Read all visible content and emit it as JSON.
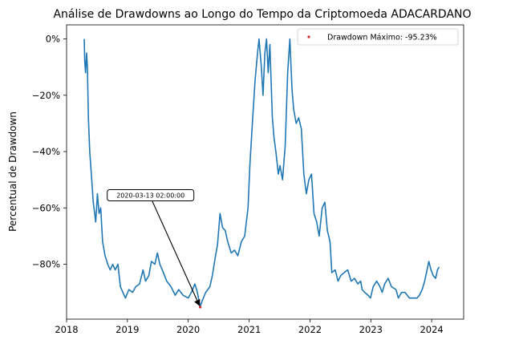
{
  "chart_data": {
    "type": "line",
    "title": "Análise de Drawdowns ao Longo do Tempo da Criptomoeda ADACARDANO",
    "xlabel": "",
    "ylabel": "Percentual de Drawdown",
    "xlim": [
      "2018-01-01",
      "2024-07-11"
    ],
    "ylim": [
      -99.5,
      5
    ],
    "x_ticks": [
      "2018",
      "2019",
      "2020",
      "2021",
      "2022",
      "2023",
      "2024"
    ],
    "y_ticks": [
      "0%",
      "−20%",
      "−40%",
      "−60%",
      "−80%"
    ],
    "y_tick_values": [
      0,
      -20,
      -40,
      -60,
      -80
    ],
    "grid": false,
    "legend_position": "top-right",
    "series": [
      {
        "color": "#1f77b4",
        "points": [
          [
            "2018-04-17",
            0
          ],
          [
            "2018-04-20",
            -8
          ],
          [
            "2018-04-25",
            -12
          ],
          [
            "2018-05-01",
            -5
          ],
          [
            "2018-05-06",
            -10
          ],
          [
            "2018-05-12",
            -28
          ],
          [
            "2018-05-20",
            -40
          ],
          [
            "2018-06-01",
            -50
          ],
          [
            "2018-06-10",
            -58
          ],
          [
            "2018-06-25",
            -65
          ],
          [
            "2018-07-05",
            -55
          ],
          [
            "2018-07-15",
            -62
          ],
          [
            "2018-07-25",
            -60
          ],
          [
            "2018-08-05",
            -72
          ],
          [
            "2018-08-20",
            -77
          ],
          [
            "2018-09-05",
            -80
          ],
          [
            "2018-09-20",
            -82
          ],
          [
            "2018-10-05",
            -80
          ],
          [
            "2018-10-20",
            -82
          ],
          [
            "2018-11-05",
            -80
          ],
          [
            "2018-11-20",
            -88
          ],
          [
            "2018-12-05",
            -90
          ],
          [
            "2018-12-20",
            -92
          ],
          [
            "2019-01-10",
            -89
          ],
          [
            "2019-02-01",
            -90
          ],
          [
            "2019-02-20",
            -88
          ],
          [
            "2019-03-15",
            -87
          ],
          [
            "2019-04-05",
            -82
          ],
          [
            "2019-04-20",
            -86
          ],
          [
            "2019-05-10",
            -84
          ],
          [
            "2019-05-25",
            -79
          ],
          [
            "2019-06-15",
            -80
          ],
          [
            "2019-06-30",
            -76
          ],
          [
            "2019-07-15",
            -80
          ],
          [
            "2019-08-05",
            -83
          ],
          [
            "2019-08-25",
            -86
          ],
          [
            "2019-09-20",
            -88
          ],
          [
            "2019-10-15",
            -91
          ],
          [
            "2019-11-05",
            -89
          ],
          [
            "2019-12-01",
            -91
          ],
          [
            "2020-01-01",
            -92
          ],
          [
            "2020-01-20",
            -90
          ],
          [
            "2020-02-10",
            -87
          ],
          [
            "2020-02-25",
            -90
          ],
          [
            "2020-03-13",
            -95
          ],
          [
            "2020-03-25",
            -93
          ],
          [
            "2020-04-15",
            -90
          ],
          [
            "2020-05-10",
            -88
          ],
          [
            "2020-05-25",
            -84
          ],
          [
            "2020-06-10",
            -78
          ],
          [
            "2020-06-25",
            -73
          ],
          [
            "2020-07-10",
            -62
          ],
          [
            "2020-07-25",
            -67
          ],
          [
            "2020-08-10",
            -68
          ],
          [
            "2020-08-25",
            -72
          ],
          [
            "2020-09-15",
            -76
          ],
          [
            "2020-10-05",
            -75
          ],
          [
            "2020-10-25",
            -77
          ],
          [
            "2020-11-15",
            -72
          ],
          [
            "2020-12-05",
            -70
          ],
          [
            "2020-12-25",
            -60
          ],
          [
            "2021-01-05",
            -45
          ],
          [
            "2021-01-20",
            -30
          ],
          [
            "2021-02-05",
            -15
          ],
          [
            "2021-02-20",
            -5
          ],
          [
            "2021-03-01",
            0
          ],
          [
            "2021-03-15",
            -10
          ],
          [
            "2021-03-25",
            -20
          ],
          [
            "2021-04-05",
            -5
          ],
          [
            "2021-04-15",
            0
          ],
          [
            "2021-04-25",
            -12
          ],
          [
            "2021-05-05",
            -2
          ],
          [
            "2021-05-20",
            -28
          ],
          [
            "2021-05-30",
            -35
          ],
          [
            "2021-06-10",
            -40
          ],
          [
            "2021-06-25",
            -48
          ],
          [
            "2021-07-05",
            -45
          ],
          [
            "2021-07-20",
            -50
          ],
          [
            "2021-08-05",
            -38
          ],
          [
            "2021-08-20",
            -12
          ],
          [
            "2021-09-02",
            0
          ],
          [
            "2021-09-15",
            -18
          ],
          [
            "2021-09-25",
            -25
          ],
          [
            "2021-10-10",
            -30
          ],
          [
            "2021-10-25",
            -28
          ],
          [
            "2021-11-10",
            -32
          ],
          [
            "2021-11-25",
            -48
          ],
          [
            "2021-12-10",
            -55
          ],
          [
            "2021-12-25",
            -50
          ],
          [
            "2022-01-10",
            -48
          ],
          [
            "2022-01-25",
            -62
          ],
          [
            "2022-02-10",
            -65
          ],
          [
            "2022-02-25",
            -70
          ],
          [
            "2022-03-15",
            -60
          ],
          [
            "2022-03-31",
            -58
          ],
          [
            "2022-04-15",
            -68
          ],
          [
            "2022-05-01",
            -72
          ],
          [
            "2022-05-12",
            -83
          ],
          [
            "2022-06-01",
            -82
          ],
          [
            "2022-06-18",
            -86
          ],
          [
            "2022-07-05",
            -84
          ],
          [
            "2022-07-25",
            -83
          ],
          [
            "2022-08-15",
            -82
          ],
          [
            "2022-09-05",
            -86
          ],
          [
            "2022-09-25",
            -85
          ],
          [
            "2022-10-15",
            -87
          ],
          [
            "2022-11-01",
            -86
          ],
          [
            "2022-11-10",
            -89
          ],
          [
            "2022-11-25",
            -90
          ],
          [
            "2022-12-15",
            -91
          ],
          [
            "2022-12-30",
            -92
          ],
          [
            "2023-01-15",
            -88
          ],
          [
            "2023-02-05",
            -86
          ],
          [
            "2023-02-25",
            -88
          ],
          [
            "2023-03-10",
            -90
          ],
          [
            "2023-03-25",
            -87
          ],
          [
            "2023-04-15",
            -85
          ],
          [
            "2023-05-05",
            -88
          ],
          [
            "2023-06-01",
            -89
          ],
          [
            "2023-06-15",
            -92
          ],
          [
            "2023-07-05",
            -90
          ],
          [
            "2023-07-25",
            -90
          ],
          [
            "2023-08-20",
            -92
          ],
          [
            "2023-09-15",
            -92
          ],
          [
            "2023-10-05",
            -92
          ],
          [
            "2023-10-20",
            -91
          ],
          [
            "2023-11-05",
            -89
          ],
          [
            "2023-11-20",
            -86
          ],
          [
            "2023-12-01",
            -83
          ],
          [
            "2023-12-15",
            -79
          ],
          [
            "2023-12-28",
            -82
          ],
          [
            "2024-01-10",
            -84
          ],
          [
            "2024-01-25",
            -85
          ],
          [
            "2024-02-05",
            -82
          ],
          [
            "2024-02-15",
            -81
          ]
        ]
      }
    ],
    "legend": [
      {
        "label": "Drawdown Máximo: -95.23%",
        "color": "#d62728",
        "marker": "point"
      }
    ],
    "max_drawdown_point": {
      "x": "2020-03-13",
      "y": -95.23,
      "color": "#d62728"
    },
    "annotation": {
      "text": "2020-03-13 02:00:00",
      "target": {
        "x": "2020-03-13",
        "y": -95.23
      },
      "anchor": {
        "x": "2019-05-20",
        "y": -55.5
      }
    }
  }
}
